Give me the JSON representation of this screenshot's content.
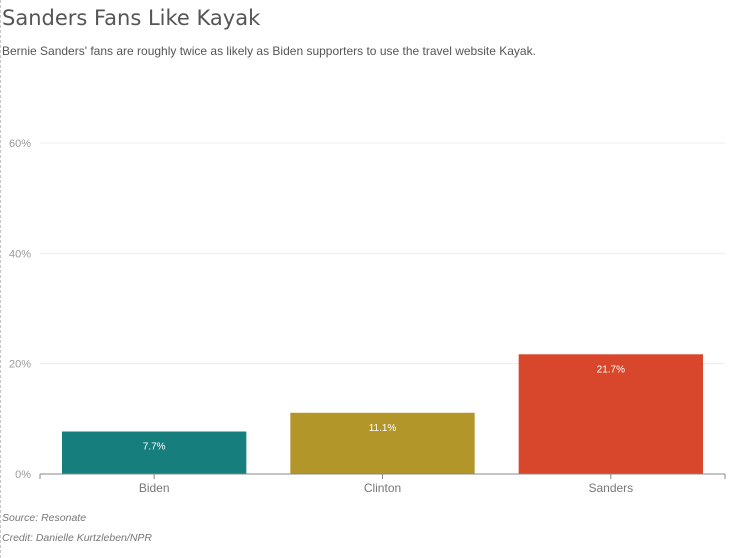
{
  "title": "Sanders Fans Like Kayak",
  "subtitle": "Bernie Sanders' fans are roughly twice as likely as Biden supporters to use the travel website Kayak.",
  "source": "Source: Resonate",
  "credit": "Credit: Danielle Kurtzleben/NPR",
  "chart_data": {
    "type": "bar",
    "categories": [
      "Biden",
      "Clinton",
      "Sanders"
    ],
    "values": [
      7.7,
      11.1,
      21.7
    ],
    "value_labels": [
      "7.7%",
      "11.1%",
      "21.7%"
    ],
    "colors": [
      "#177e7e",
      "#b3962a",
      "#d8472b"
    ],
    "yticks": [
      0,
      20,
      40,
      60
    ],
    "ytick_labels": [
      "0%",
      "20%",
      "40%",
      "60%"
    ],
    "ylim": [
      0,
      60
    ],
    "grid": true,
    "legend": "none"
  }
}
